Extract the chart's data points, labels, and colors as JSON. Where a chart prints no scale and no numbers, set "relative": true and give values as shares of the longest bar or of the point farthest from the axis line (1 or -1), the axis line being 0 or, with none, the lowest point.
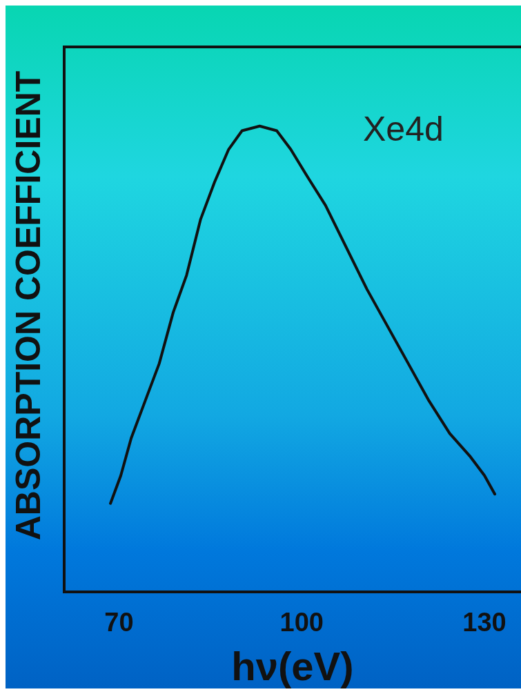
{
  "chart_data": {
    "type": "line",
    "xlabel": "hν(eV)",
    "ylabel": "ABSORPTION COEFFICIENT",
    "relative": true,
    "xlim": [
      61,
      136
    ],
    "xticks": [
      70,
      100,
      130
    ],
    "series": [
      {
        "name": "Xe4d",
        "color": "#111111",
        "x": [
          68.6,
          70.3,
          72.0,
          74.3,
          76.6,
          78.9,
          81.1,
          83.4,
          85.7,
          88.0,
          90.2,
          93.1,
          95.9,
          98.2,
          101.0,
          103.9,
          107.3,
          110.7,
          114.1,
          117.5,
          120.9,
          124.3,
          127.7,
          130.0,
          131.7
        ],
        "values": [
          0.19,
          0.25,
          0.33,
          0.41,
          0.49,
          0.6,
          0.68,
          0.8,
          0.88,
          0.95,
          0.99,
          1.0,
          0.99,
          0.95,
          0.89,
          0.83,
          0.74,
          0.65,
          0.57,
          0.49,
          0.41,
          0.34,
          0.29,
          0.25,
          0.21
        ]
      }
    ]
  }
}
